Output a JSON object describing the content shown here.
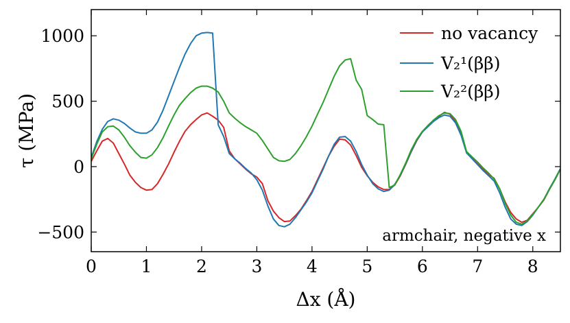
{
  "chart_data": {
    "type": "line",
    "title": "",
    "xlabel": "Δx (Å)",
    "ylabel": "τ (MPa)",
    "xlim": [
      0,
      8.5
    ],
    "ylim": [
      -650,
      1200
    ],
    "xticks": [
      "0",
      "1",
      "2",
      "3",
      "4",
      "5",
      "6",
      "7",
      "8"
    ],
    "xtick_values": [
      0,
      1,
      2,
      3,
      4,
      5,
      6,
      7,
      8
    ],
    "yticks": [
      "−500",
      "0",
      "500",
      "1000"
    ],
    "ytick_values": [
      -500,
      0,
      500,
      1000
    ],
    "grid": false,
    "legend_position": "top-right",
    "annotation": "armchair, negative x",
    "series": [
      {
        "name": "no vacancy",
        "color": "#d62728",
        "x": [
          0,
          0.1,
          0.2,
          0.3,
          0.4,
          0.5,
          0.6,
          0.7,
          0.8,
          0.9,
          1.0,
          1.1,
          1.2,
          1.3,
          1.4,
          1.5,
          1.6,
          1.7,
          1.8,
          1.9,
          2.0,
          2.1,
          2.2,
          2.3,
          2.4,
          2.5,
          2.6,
          2.7,
          2.8,
          2.9,
          3.0,
          3.1,
          3.2,
          3.3,
          3.4,
          3.5,
          3.6,
          3.7,
          3.8,
          3.9,
          4.0,
          4.1,
          4.2,
          4.3,
          4.4,
          4.5,
          4.6,
          4.7,
          4.8,
          4.9,
          5.0,
          5.1,
          5.2,
          5.3,
          5.4,
          5.5,
          5.6,
          5.7,
          5.8,
          5.9,
          6.0,
          6.1,
          6.2,
          6.3,
          6.4,
          6.5,
          6.6,
          6.7,
          6.8,
          6.9,
          7.0,
          7.1,
          7.2,
          7.3,
          7.4,
          7.5,
          7.6,
          7.7,
          7.8,
          7.9,
          8.0,
          8.1,
          8.2,
          8.3,
          8.4,
          8.5
        ],
        "y": [
          40,
          120,
          195,
          215,
          180,
          100,
          20,
          -65,
          -120,
          -160,
          -180,
          -175,
          -130,
          -60,
          20,
          110,
          195,
          270,
          320,
          360,
          395,
          410,
          385,
          355,
          300,
          120,
          60,
          20,
          -20,
          -55,
          -80,
          -130,
          -260,
          -340,
          -390,
          -420,
          -415,
          -375,
          -325,
          -260,
          -190,
          -100,
          -10,
          80,
          155,
          210,
          205,
          165,
          85,
          -5,
          -70,
          -120,
          -155,
          -175,
          -175,
          -140,
          -70,
          20,
          115,
          200,
          265,
          310,
          345,
          385,
          415,
          400,
          345,
          250,
          110,
          65,
          20,
          -20,
          -60,
          -90,
          -170,
          -270,
          -350,
          -400,
          -425,
          -410,
          -360,
          -310,
          -255,
          -175,
          -100,
          -20
        ]
      },
      {
        "name": "V₂¹(ββ)",
        "color": "#1f77b4",
        "x": [
          0,
          0.1,
          0.2,
          0.3,
          0.4,
          0.5,
          0.6,
          0.7,
          0.8,
          0.9,
          1.0,
          1.1,
          1.2,
          1.3,
          1.4,
          1.5,
          1.6,
          1.7,
          1.8,
          1.9,
          2.0,
          2.1,
          2.2,
          2.3,
          2.4,
          2.5,
          2.6,
          2.7,
          2.8,
          2.9,
          3.0,
          3.1,
          3.2,
          3.3,
          3.4,
          3.5,
          3.6,
          3.7,
          3.8,
          3.9,
          4.0,
          4.1,
          4.2,
          4.3,
          4.4,
          4.5,
          4.6,
          4.7,
          4.8,
          4.9,
          5.0,
          5.1,
          5.2,
          5.3,
          5.4,
          5.5,
          5.6,
          5.7,
          5.8,
          5.9,
          6.0,
          6.1,
          6.2,
          6.3,
          6.4,
          6.5,
          6.6,
          6.7,
          6.8,
          6.9,
          7.0,
          7.1,
          7.2,
          7.3,
          7.4,
          7.5,
          7.6,
          7.7,
          7.8,
          7.9,
          8.0,
          8.1,
          8.2,
          8.3,
          8.4,
          8.5
        ],
        "y": [
          70,
          190,
          285,
          345,
          365,
          355,
          330,
          295,
          265,
          255,
          255,
          280,
          340,
          430,
          540,
          650,
          760,
          860,
          940,
          1000,
          1020,
          1025,
          1020,
          320,
          230,
          100,
          60,
          25,
          -15,
          -50,
          -100,
          -180,
          -300,
          -400,
          -450,
          -460,
          -440,
          -390,
          -330,
          -270,
          -200,
          -110,
          -20,
          80,
          170,
          225,
          230,
          195,
          115,
          15,
          -65,
          -130,
          -170,
          -190,
          -180,
          -135,
          -65,
          25,
          120,
          205,
          265,
          305,
          345,
          375,
          395,
          385,
          335,
          240,
          105,
          60,
          15,
          -30,
          -70,
          -110,
          -200,
          -310,
          -400,
          -440,
          -450,
          -420,
          -370,
          -310,
          -250,
          -170,
          -95,
          -15
        ]
      },
      {
        "name": "V₂²(ββ)",
        "color": "#2ca02c",
        "x": [
          0,
          0.1,
          0.2,
          0.3,
          0.4,
          0.5,
          0.6,
          0.7,
          0.8,
          0.9,
          1.0,
          1.1,
          1.2,
          1.3,
          1.4,
          1.5,
          1.6,
          1.7,
          1.8,
          1.9,
          2.0,
          2.1,
          2.2,
          2.3,
          2.4,
          2.5,
          2.6,
          2.7,
          2.8,
          2.9,
          3.0,
          3.1,
          3.2,
          3.3,
          3.4,
          3.5,
          3.6,
          3.7,
          3.8,
          3.9,
          4.0,
          4.1,
          4.2,
          4.3,
          4.4,
          4.5,
          4.6,
          4.7,
          4.8,
          4.9,
          5.0,
          5.1,
          5.2,
          5.3,
          5.4,
          5.5,
          5.6,
          5.7,
          5.8,
          5.9,
          6.0,
          6.1,
          6.2,
          6.3,
          6.4,
          6.5,
          6.6,
          6.7,
          6.8,
          6.9,
          7.0,
          7.1,
          7.2,
          7.3,
          7.4,
          7.5,
          7.6,
          7.7,
          7.8,
          7.9,
          8.0,
          8.1,
          8.2,
          8.3,
          8.4,
          8.5
        ],
        "y": [
          60,
          170,
          265,
          305,
          310,
          280,
          225,
          160,
          110,
          70,
          65,
          90,
          145,
          220,
          310,
          395,
          470,
          520,
          565,
          600,
          615,
          615,
          600,
          570,
          500,
          410,
          370,
          335,
          305,
          280,
          255,
          200,
          135,
          70,
          45,
          40,
          55,
          100,
          160,
          230,
          310,
          400,
          490,
          590,
          690,
          770,
          815,
          825,
          660,
          590,
          390,
          360,
          325,
          320,
          -160,
          -140,
          -60,
          30,
          130,
          210,
          270,
          315,
          355,
          390,
          410,
          405,
          360,
          270,
          115,
          75,
          35,
          -10,
          -50,
          -95,
          -170,
          -280,
          -370,
          -425,
          -440,
          -415,
          -365,
          -310,
          -250,
          -175,
          -100,
          -20
        ]
      }
    ]
  }
}
